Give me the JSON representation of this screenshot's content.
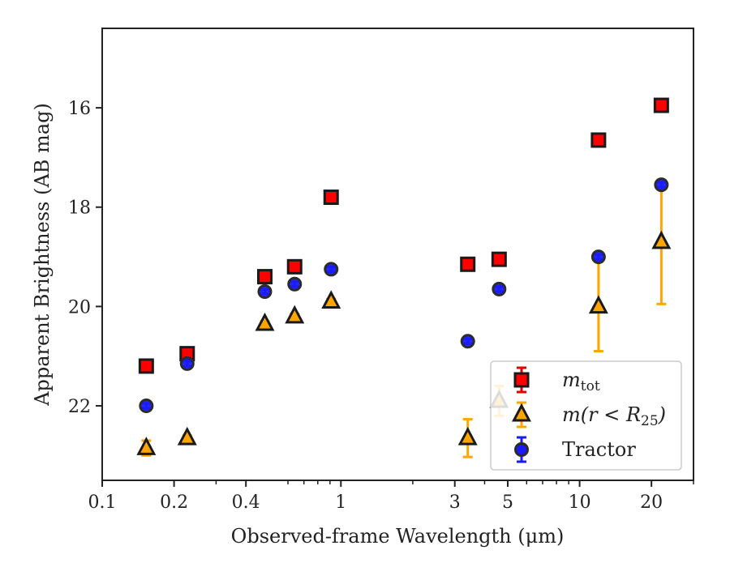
{
  "chart_data": {
    "type": "scatter",
    "xlabel": "Observed-frame Wavelength (μm)",
    "ylabel": "Apparent Brightness (AB mag)",
    "x_scale": "log",
    "xlim": [
      0.1,
      30
    ],
    "ylim": [
      23.5,
      14.4
    ],
    "y_inverted": true,
    "x_ticks": [
      0.1,
      0.2,
      0.4,
      1,
      3,
      5,
      10,
      20
    ],
    "x_tick_labels": [
      "0.1",
      "0.2",
      "0.4",
      "1",
      "3",
      "5",
      "10",
      "20"
    ],
    "y_ticks": [
      16,
      18,
      20,
      22
    ],
    "y_tick_labels": [
      "16",
      "18",
      "20",
      "22"
    ],
    "legend_position": "lower-right",
    "series": [
      {
        "name": "m_tot",
        "legend_label": "m",
        "legend_sub": "tot",
        "marker": "square",
        "color": "#ff0000",
        "edge_color": "#1a1a1a",
        "errbar_color": "#e00000",
        "x": [
          0.153,
          0.227,
          0.48,
          0.64,
          0.91,
          3.4,
          4.6,
          12.0,
          22.0
        ],
        "y": [
          21.2,
          20.95,
          19.4,
          19.2,
          17.8,
          19.15,
          19.05,
          16.65,
          15.95
        ],
        "err": [
          0.05,
          0.05,
          0.05,
          0.05,
          0.05,
          0.05,
          0.05,
          0.05,
          0.05
        ]
      },
      {
        "name": "m(r < R25)",
        "legend_label": "m(r < R",
        "legend_sub": "25",
        "legend_suffix": ")",
        "marker": "triangle",
        "color": "#ffa500",
        "edge_color": "#1a1a1a",
        "errbar_color": "#ffa500",
        "x": [
          0.153,
          0.227,
          0.48,
          0.64,
          0.91,
          3.4,
          4.6,
          12.0,
          22.0
        ],
        "y": [
          22.85,
          22.65,
          20.35,
          20.2,
          19.9,
          22.65,
          21.9,
          20.0,
          18.7
        ],
        "err": [
          0.15,
          0.05,
          0.05,
          0.05,
          0.05,
          0.38,
          0.3,
          0.9,
          1.25
        ]
      },
      {
        "name": "Tractor",
        "legend_label": "Tractor",
        "marker": "circle",
        "color": "#1a1aff",
        "edge_color": "#2b2b2b",
        "errbar_color": "#1a1aff",
        "x": [
          0.153,
          0.227,
          0.48,
          0.64,
          0.91,
          3.4,
          4.6,
          12.0,
          22.0
        ],
        "y": [
          22.0,
          21.15,
          19.7,
          19.55,
          19.25,
          20.7,
          19.65,
          19.0,
          17.55
        ],
        "err": [
          0.05,
          0.05,
          0.05,
          0.05,
          0.05,
          0.05,
          0.05,
          0.05,
          0.05
        ]
      }
    ]
  }
}
